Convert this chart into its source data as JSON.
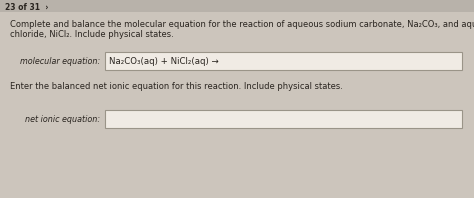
{
  "bg_color": "#ccc5bc",
  "box_bg": "#f0ebe4",
  "border_color": "#9a9488",
  "text_color": "#2a2520",
  "counter_text": "23 of 31  ›",
  "line1": "Complete and balance the molecular equation for the reaction of aqueous sodium carbonate, Na₂CO₃, and aqueous nickel(II)",
  "line2": "chloride, NiCl₂. Include physical states.",
  "label_molecular": "molecular equation:",
  "mol_eq_content": "Na₂CO₃(aq) + NiCl₂(aq) →",
  "instruction2": "Enter the balanced net ionic equation for this reaction. Include physical states.",
  "label_net": "net ionic equation:",
  "font_size_counter": 5.5,
  "font_size_body": 6.0,
  "font_size_label": 5.8,
  "font_size_eq": 6.2
}
